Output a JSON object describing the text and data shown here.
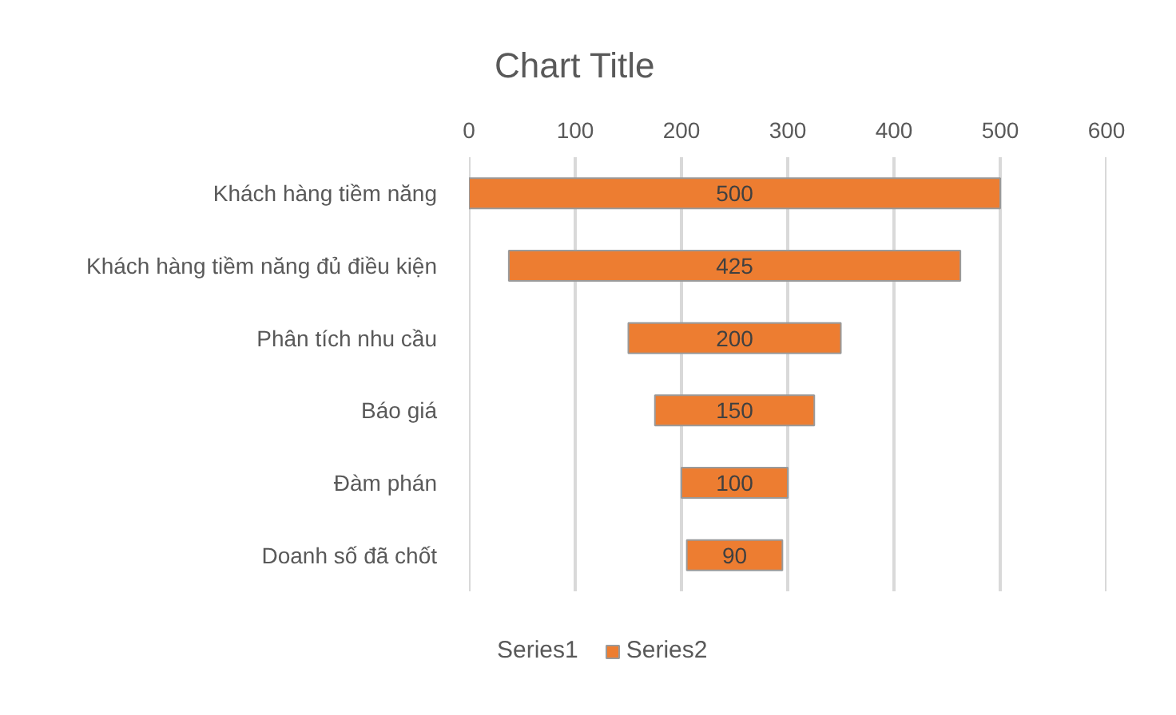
{
  "chart_data": {
    "type": "bar",
    "title": "Chart Title",
    "orientation": "horizontal",
    "categories": [
      "Khách hàng tiềm năng",
      "Khách hàng tiềm năng đủ điều kiện",
      "Phân tích nhu cầu",
      "Báo giá",
      "Đàm phán",
      "Doanh số đã chốt"
    ],
    "series": [
      {
        "name": "Series2",
        "color": "#ed7d31",
        "values": [
          500,
          425,
          200,
          150,
          100,
          90
        ],
        "base": [
          0,
          37.5,
          150,
          175,
          200,
          205
        ]
      }
    ],
    "xlim": [
      0,
      600
    ],
    "xticks": [
      0,
      100,
      200,
      300,
      400,
      500,
      600
    ],
    "grid": "x",
    "data_labels": true,
    "legend": "bottom",
    "annotations": [
      "Series1"
    ]
  }
}
